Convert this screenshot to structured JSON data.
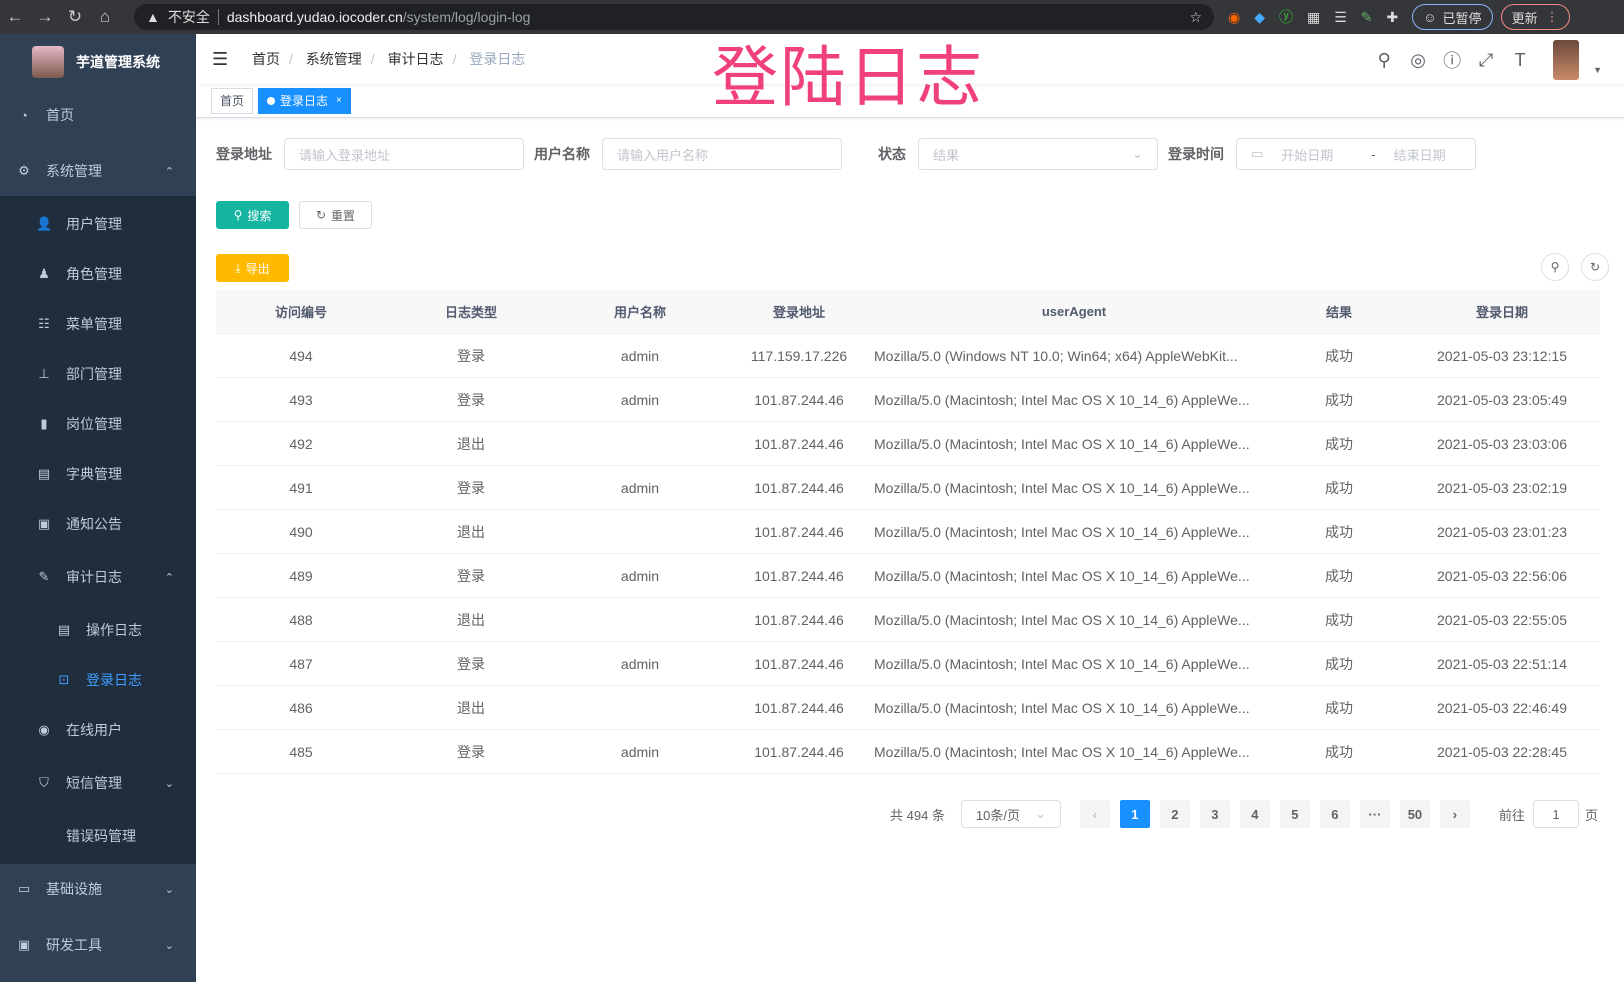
{
  "browser": {
    "insecure": "不安全",
    "host": "dashboard.yudao.iocoder.cn",
    "path": "/system/log/login-log",
    "paused": "已暂停",
    "update": "更新"
  },
  "overlay_title": "登陆日志",
  "sidebar": {
    "title": "芋道管理系统",
    "items": [
      {
        "label": "首页",
        "icon": "dashboard-icon"
      },
      {
        "label": "系统管理",
        "icon": "gear-icon"
      },
      {
        "label": "用户管理",
        "icon": "user-icon"
      },
      {
        "label": "角色管理",
        "icon": "peoples-icon"
      },
      {
        "label": "菜单管理",
        "icon": "tree-table-icon"
      },
      {
        "label": "部门管理",
        "icon": "tree-icon"
      },
      {
        "label": "岗位管理",
        "icon": "post-icon"
      },
      {
        "label": "字典管理",
        "icon": "dict-icon"
      },
      {
        "label": "通知公告",
        "icon": "message-icon"
      },
      {
        "label": "审计日志",
        "icon": "log-icon"
      },
      {
        "label": "操作日志",
        "icon": "form-icon"
      },
      {
        "label": "登录日志",
        "icon": "logininfor-icon"
      },
      {
        "label": "在线用户",
        "icon": "online-icon"
      },
      {
        "label": "短信管理",
        "icon": "validCode-icon"
      },
      {
        "label": "错误码管理",
        "icon": "code-icon"
      },
      {
        "label": "基础设施",
        "icon": "monitor-icon"
      },
      {
        "label": "研发工具",
        "icon": "tool-icon"
      }
    ]
  },
  "breadcrumb": [
    "首页",
    "系统管理",
    "审计日志",
    "登录日志"
  ],
  "tags": {
    "home": "首页",
    "current": "登录日志"
  },
  "filters": {
    "addr_label": "登录地址",
    "addr_ph": "请输入登录地址",
    "user_label": "用户名称",
    "user_ph": "请输入用户名称",
    "status_label": "状态",
    "status_ph": "结果",
    "time_label": "登录时间",
    "start_ph": "开始日期",
    "dash": "-",
    "end_ph": "结束日期"
  },
  "buttons": {
    "search": "搜索",
    "reset": "重置",
    "export": "导出"
  },
  "colors": {
    "sidebar": "#304156",
    "primary": "#1890ff",
    "search": "#13ce66",
    "export": "#ffba00"
  },
  "table": {
    "columns": [
      "访问编号",
      "日志类型",
      "用户名称",
      "登录地址",
      "userAgent",
      "结果",
      "登录日期"
    ],
    "rows": [
      [
        "494",
        "登录",
        "admin",
        "117.159.17.226",
        "Mozilla/5.0 (Windows NT 10.0; Win64; x64) AppleWebKit...",
        "成功",
        "2021-05-03 23:12:15"
      ],
      [
        "493",
        "登录",
        "admin",
        "101.87.244.46",
        "Mozilla/5.0 (Macintosh; Intel Mac OS X 10_14_6) AppleWe...",
        "成功",
        "2021-05-03 23:05:49"
      ],
      [
        "492",
        "退出",
        "",
        "101.87.244.46",
        "Mozilla/5.0 (Macintosh; Intel Mac OS X 10_14_6) AppleWe...",
        "成功",
        "2021-05-03 23:03:06"
      ],
      [
        "491",
        "登录",
        "admin",
        "101.87.244.46",
        "Mozilla/5.0 (Macintosh; Intel Mac OS X 10_14_6) AppleWe...",
        "成功",
        "2021-05-03 23:02:19"
      ],
      [
        "490",
        "退出",
        "",
        "101.87.244.46",
        "Mozilla/5.0 (Macintosh; Intel Mac OS X 10_14_6) AppleWe...",
        "成功",
        "2021-05-03 23:01:23"
      ],
      [
        "489",
        "登录",
        "admin",
        "101.87.244.46",
        "Mozilla/5.0 (Macintosh; Intel Mac OS X 10_14_6) AppleWe...",
        "成功",
        "2021-05-03 22:56:06"
      ],
      [
        "488",
        "退出",
        "",
        "101.87.244.46",
        "Mozilla/5.0 (Macintosh; Intel Mac OS X 10_14_6) AppleWe...",
        "成功",
        "2021-05-03 22:55:05"
      ],
      [
        "487",
        "登录",
        "admin",
        "101.87.244.46",
        "Mozilla/5.0 (Macintosh; Intel Mac OS X 10_14_6) AppleWe...",
        "成功",
        "2021-05-03 22:51:14"
      ],
      [
        "486",
        "退出",
        "",
        "101.87.244.46",
        "Mozilla/5.0 (Macintosh; Intel Mac OS X 10_14_6) AppleWe...",
        "成功",
        "2021-05-03 22:46:49"
      ],
      [
        "485",
        "登录",
        "admin",
        "101.87.244.46",
        "Mozilla/5.0 (Macintosh; Intel Mac OS X 10_14_6) AppleWe...",
        "成功",
        "2021-05-03 22:28:45"
      ]
    ]
  },
  "pagination": {
    "total": "共 494 条",
    "size": "10条/页",
    "pages": [
      "1",
      "2",
      "3",
      "4",
      "5",
      "6",
      "···",
      "50"
    ],
    "current": "1",
    "goto": "前往",
    "goto_value": "1",
    "page_unit": "页"
  }
}
